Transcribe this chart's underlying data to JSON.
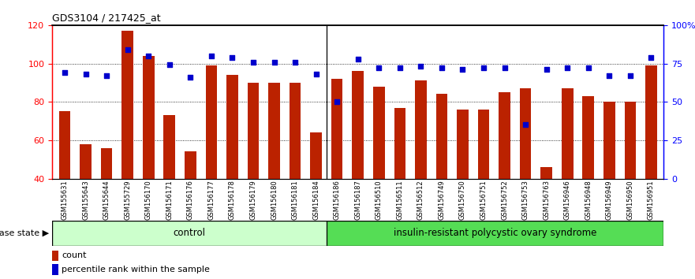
{
  "title": "GDS3104 / 217425_at",
  "samples": [
    "GSM155631",
    "GSM155643",
    "GSM155644",
    "GSM155729",
    "GSM156170",
    "GSM156171",
    "GSM156176",
    "GSM156177",
    "GSM156178",
    "GSM156179",
    "GSM156180",
    "GSM156181",
    "GSM156184",
    "GSM156186",
    "GSM156187",
    "GSM156510",
    "GSM156511",
    "GSM156512",
    "GSM156749",
    "GSM156750",
    "GSM156751",
    "GSM156752",
    "GSM156753",
    "GSM156763",
    "GSM156946",
    "GSM156948",
    "GSM156949",
    "GSM156950",
    "GSM156951"
  ],
  "bar_heights": [
    75,
    58,
    56,
    117,
    104,
    73,
    54,
    99,
    94,
    90,
    90,
    90,
    64,
    92,
    96,
    88,
    77,
    91,
    84,
    76,
    76,
    85,
    87,
    46,
    87,
    83,
    80,
    80,
    99
  ],
  "percentile_ranks": [
    69,
    68,
    67,
    84,
    80,
    74,
    66,
    80,
    79,
    76,
    76,
    76,
    68,
    50,
    78,
    72,
    72,
    73,
    72,
    71,
    72,
    72,
    35,
    71,
    72,
    72,
    67,
    67,
    79
  ],
  "n_control": 13,
  "ymin": 40,
  "ymax": 120,
  "yticks_left": [
    40,
    60,
    80,
    100,
    120
  ],
  "yticks_right": [
    0,
    25,
    50,
    75,
    100
  ],
  "bar_color": "#BB2200",
  "dot_color": "#0000CC",
  "control_label": "control",
  "disease_label": "insulin-resistant polycystic ovary syndrome",
  "disease_state_label": "disease state",
  "legend_count": "count",
  "legend_percentile": "percentile rank within the sample",
  "control_bg": "#CCFFCC",
  "disease_bg": "#55DD55"
}
